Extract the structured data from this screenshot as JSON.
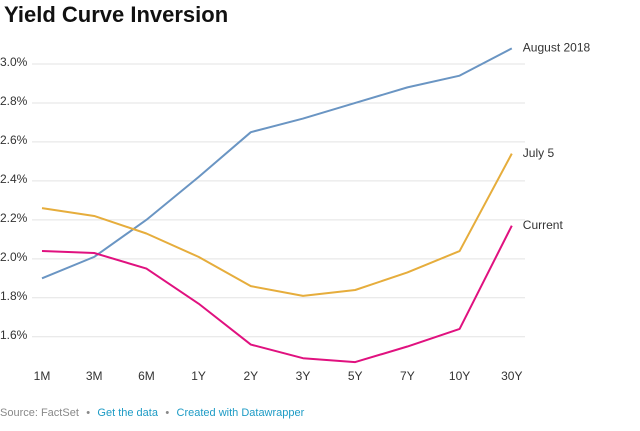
{
  "chart_data": {
    "type": "line",
    "title": "Yield Curve Inversion",
    "categories": [
      "1M",
      "3M",
      "6M",
      "1Y",
      "2Y",
      "3Y",
      "5Y",
      "7Y",
      "10Y",
      "30Y"
    ],
    "series": [
      {
        "name": "August 2018",
        "color": "#6a95c3",
        "values": [
          1.9,
          2.01,
          2.2,
          2.42,
          2.65,
          2.72,
          2.8,
          2.88,
          2.94,
          3.08
        ]
      },
      {
        "name": "July 5",
        "color": "#e6ad3c",
        "values": [
          2.26,
          2.22,
          2.13,
          2.01,
          1.86,
          1.81,
          1.84,
          1.93,
          2.04,
          2.54
        ]
      },
      {
        "name": "Current",
        "color": "#e0117f",
        "values": [
          2.04,
          2.03,
          1.95,
          1.77,
          1.56,
          1.49,
          1.47,
          1.55,
          1.64,
          2.17
        ]
      }
    ],
    "ylim": [
      1.45,
      3.1
    ],
    "yticks": [
      {
        "value": 1.6,
        "label": "1.6%"
      },
      {
        "value": 1.8,
        "label": "1.8%"
      },
      {
        "value": 2.0,
        "label": "2.0%"
      },
      {
        "value": 2.2,
        "label": "2.2%"
      },
      {
        "value": 2.4,
        "label": "2.4%"
      },
      {
        "value": 2.6,
        "label": "2.6%"
      },
      {
        "value": 2.8,
        "label": "2.8%"
      },
      {
        "value": 3.0,
        "label": "3.0%"
      }
    ],
    "grid": true,
    "footer": {
      "source": "Source: FactSet",
      "separator": "•",
      "data_link": "Get the data",
      "credit": "Created with Datawrapper"
    }
  }
}
